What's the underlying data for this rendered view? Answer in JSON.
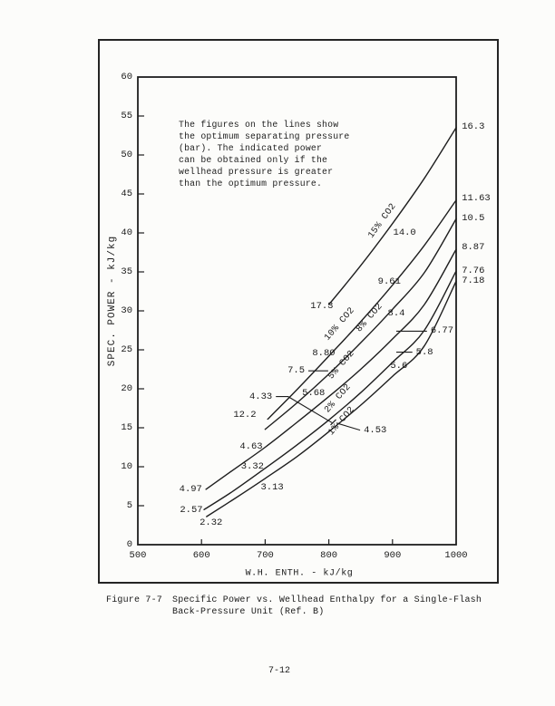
{
  "page": {
    "page_number": "7-12"
  },
  "figure": {
    "caption_label": "Figure 7-7",
    "caption_line1": "Specific Power vs. Wellhead Enthalpy for a Single-Flash",
    "caption_line2": "Back-Pressure Unit  (Ref. B)"
  },
  "annotation": "The figures on the lines show\nthe optimum separating pressure\n(bar). The indicated power\ncan be obtained only if the\nwellhead pressure is greater\nthan the optimum pressure.",
  "chart_data": {
    "type": "line",
    "title": "",
    "xlabel": "W.H. ENTH. - kJ/kg",
    "ylabel": "SPEC. POWER - kJ/kg",
    "xlim": [
      500,
      1000
    ],
    "ylim": [
      0,
      60
    ],
    "grid": false,
    "x_tick_labels": [
      500,
      600,
      700,
      800,
      900,
      1000
    ],
    "y_tick_labels": [
      0,
      5,
      10,
      15,
      20,
      25,
      30,
      35,
      40,
      45,
      50,
      55,
      60
    ],
    "x_tick_marks": [
      600,
      700,
      800,
      900
    ],
    "y_tick_marks": [
      5,
      10,
      15,
      20,
      25,
      30,
      35,
      40,
      45,
      50,
      55
    ],
    "series": [
      {
        "name": "15% CO2",
        "label": "15% CO2",
        "label_pos": [
          884,
          41.5
        ],
        "label_angle": -54,
        "points": [
          [
            800,
            30.8
          ],
          [
            850,
            35.8
          ],
          [
            900,
            41.2
          ],
          [
            950,
            47.0
          ],
          [
            1000,
            53.5
          ]
        ]
      },
      {
        "name": "10% CO2",
        "label": "10% CO2",
        "label_pos": [
          818,
          28.3
        ],
        "label_angle": -49,
        "points": [
          [
            704,
            16.1
          ],
          [
            750,
            19.9
          ],
          [
            800,
            24.2
          ],
          [
            850,
            28.6
          ],
          [
            900,
            33.3
          ],
          [
            950,
            38.4
          ],
          [
            1000,
            44.2
          ]
        ]
      },
      {
        "name": "8% CO2",
        "label": "8% CO2",
        "label_pos": [
          864,
          29.1
        ],
        "label_angle": -49,
        "points": [
          [
            700,
            14.8
          ],
          [
            750,
            18.2
          ],
          [
            800,
            21.9
          ],
          [
            850,
            25.9
          ],
          [
            900,
            30.2
          ],
          [
            950,
            34.9
          ],
          [
            1000,
            41.8
          ]
        ]
      },
      {
        "name": "5% CO2",
        "label": "5% CO2",
        "label_pos": [
          820,
          23.0
        ],
        "label_angle": -49,
        "points": [
          [
            607,
            7.1
          ],
          [
            650,
            9.6
          ],
          [
            700,
            12.5
          ],
          [
            750,
            15.7
          ],
          [
            800,
            19.0
          ],
          [
            850,
            22.5
          ],
          [
            900,
            26.4
          ],
          [
            950,
            30.8
          ],
          [
            1000,
            37.9
          ]
        ]
      },
      {
        "name": "2% CO2",
        "label": "2% CO2",
        "label_pos": [
          815,
          18.7
        ],
        "label_angle": -49,
        "points": [
          [
            604,
            4.5
          ],
          [
            650,
            6.9
          ],
          [
            700,
            9.8
          ],
          [
            750,
            12.8
          ],
          [
            800,
            16.0
          ],
          [
            850,
            19.5
          ],
          [
            900,
            23.4
          ],
          [
            950,
            27.5
          ],
          [
            1000,
            35.1
          ]
        ]
      },
      {
        "name": "1% CO2",
        "label": "1% CO2",
        "label_pos": [
          820,
          15.8
        ],
        "label_angle": -49,
        "points": [
          [
            608,
            3.6
          ],
          [
            650,
            5.8
          ],
          [
            700,
            8.5
          ],
          [
            750,
            11.3
          ],
          [
            800,
            14.5
          ],
          [
            850,
            17.9
          ],
          [
            900,
            21.6
          ],
          [
            950,
            25.5
          ],
          [
            1000,
            33.8
          ]
        ]
      }
    ],
    "pressure_labels": [
      {
        "text": "16.3",
        "x": 1006,
        "y": 53.6,
        "align": "left"
      },
      {
        "text": "11.63",
        "x": 1006,
        "y": 44.4,
        "align": "left"
      },
      {
        "text": "10.5",
        "x": 1006,
        "y": 41.9,
        "align": "left"
      },
      {
        "text": "8.87",
        "x": 1006,
        "y": 38.1,
        "align": "left"
      },
      {
        "text": "7.76",
        "x": 1006,
        "y": 35.1,
        "align": "left"
      },
      {
        "text": "7.18",
        "x": 1006,
        "y": 33.8,
        "align": "left"
      },
      {
        "text": "17.3",
        "x": 789,
        "y": 30.6,
        "align": "center"
      },
      {
        "text": "14.0",
        "x": 919,
        "y": 40.0,
        "align": "center"
      },
      {
        "text": "9.61",
        "x": 895,
        "y": 33.7,
        "align": "center"
      },
      {
        "text": "8.4",
        "x": 906,
        "y": 29.7,
        "align": "center"
      },
      {
        "text": "8.80",
        "x": 792,
        "y": 24.5,
        "align": "center"
      },
      {
        "text": "7.5",
        "x": 765,
        "y": 22.3,
        "align": "right",
        "leader_to": [
          [
            799,
            22.3
          ]
        ]
      },
      {
        "text": "5.68",
        "x": 776,
        "y": 19.4,
        "align": "center"
      },
      {
        "text": "4.33",
        "x": 714,
        "y": 19.0,
        "align": "right",
        "leader_to": [
          [
            736,
            19.0
          ],
          [
            806,
            15.6
          ]
        ]
      },
      {
        "text": "12.2",
        "x": 668,
        "y": 16.6,
        "align": "center"
      },
      {
        "text": "4.63",
        "x": 678,
        "y": 12.6,
        "align": "center"
      },
      {
        "text": "3.32",
        "x": 680,
        "y": 10.0,
        "align": "center"
      },
      {
        "text": "3.13",
        "x": 711,
        "y": 7.3,
        "align": "center"
      },
      {
        "text": "4.97",
        "x": 583,
        "y": 7.1,
        "align": "center"
      },
      {
        "text": "2.57",
        "x": 584,
        "y": 4.4,
        "align": "center"
      },
      {
        "text": "2.32",
        "x": 615,
        "y": 2.8,
        "align": "center"
      },
      {
        "text": "6.77",
        "x": 957,
        "y": 27.4,
        "align": "left",
        "leader_to": [
          [
            906,
            27.4
          ]
        ]
      },
      {
        "text": "5.8",
        "x": 934,
        "y": 24.7,
        "align": "left",
        "leader_to": [
          [
            906,
            24.7
          ]
        ]
      },
      {
        "text": "5.6",
        "x": 910,
        "y": 22.9,
        "align": "center"
      },
      {
        "text": "4.53",
        "x": 852,
        "y": 14.7,
        "align": "left",
        "leader_to": [
          [
            812,
            15.6
          ]
        ]
      }
    ],
    "curve_tick_marks": [
      [
        807,
        15.7
      ]
    ],
    "ink_color": "#1e1e1e"
  }
}
